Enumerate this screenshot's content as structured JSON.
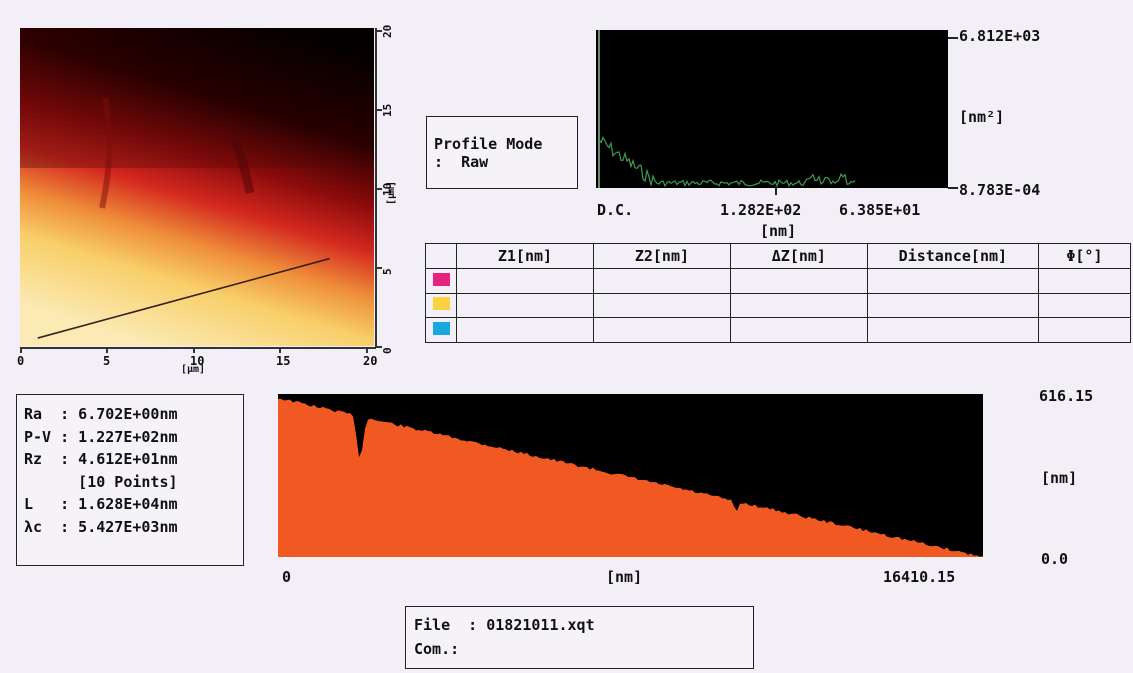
{
  "image_map": {
    "x_ticks": [
      "0",
      "5",
      "10",
      "15",
      "20"
    ],
    "x_unit": "[µm]",
    "y_ticks": [
      "0",
      "5",
      "10",
      "15",
      "20"
    ],
    "y_unit": "[µm]",
    "colors": {
      "high": "#0a0000",
      "mid": "#d0271f",
      "low": "#f8e2a4"
    },
    "profile_line": {
      "x_start_um": 1.0,
      "y_start_um": 0.5,
      "x_end_um": 17.5,
      "y_end_um": 5.5
    }
  },
  "profile_mode": {
    "line1": "Profile Mode",
    "line2": ":  Raw"
  },
  "spectrum": {
    "y_max": "6.812E+03",
    "y_unit": "[nm²]",
    "y_min": "8.783E-04",
    "x_labels": [
      "D.C.",
      "1.282E+02",
      "6.385E+01"
    ],
    "x_unit": "[nm]",
    "line_color": "#3c9a54"
  },
  "measure_table": {
    "headers": [
      "",
      "Z1[nm]",
      "Z2[nm]",
      "ΔZ[nm]",
      "Distance[nm]",
      "Φ[°]"
    ],
    "rows": [
      {
        "color": "#e3237d",
        "cells": [
          "",
          "",
          "",
          "",
          ""
        ]
      },
      {
        "color": "#f8d23f",
        "cells": [
          "",
          "",
          "",
          "",
          ""
        ]
      },
      {
        "color": "#19a7dd",
        "cells": [
          "",
          "",
          "",
          "",
          ""
        ]
      }
    ]
  },
  "stats": {
    "lines": [
      "Ra  : 6.702E+00nm",
      "P-V : 1.227E+02nm",
      "Rz  : 4.612E+01nm",
      "      [10 Points]",
      "L   : 1.628E+04nm",
      "λc  : 5.427E+03nm"
    ]
  },
  "profile": {
    "y_max": "616.15",
    "y_unit": "[nm]",
    "y_min": "0.0",
    "x_min": "0",
    "x_unit": "[nm]",
    "x_max": "16410.15",
    "fill_color": "#f05a22",
    "bg_color": "#000000"
  },
  "file_info": {
    "file_line": "File  : 01821011.xqt",
    "com_line": "Com.:"
  }
}
